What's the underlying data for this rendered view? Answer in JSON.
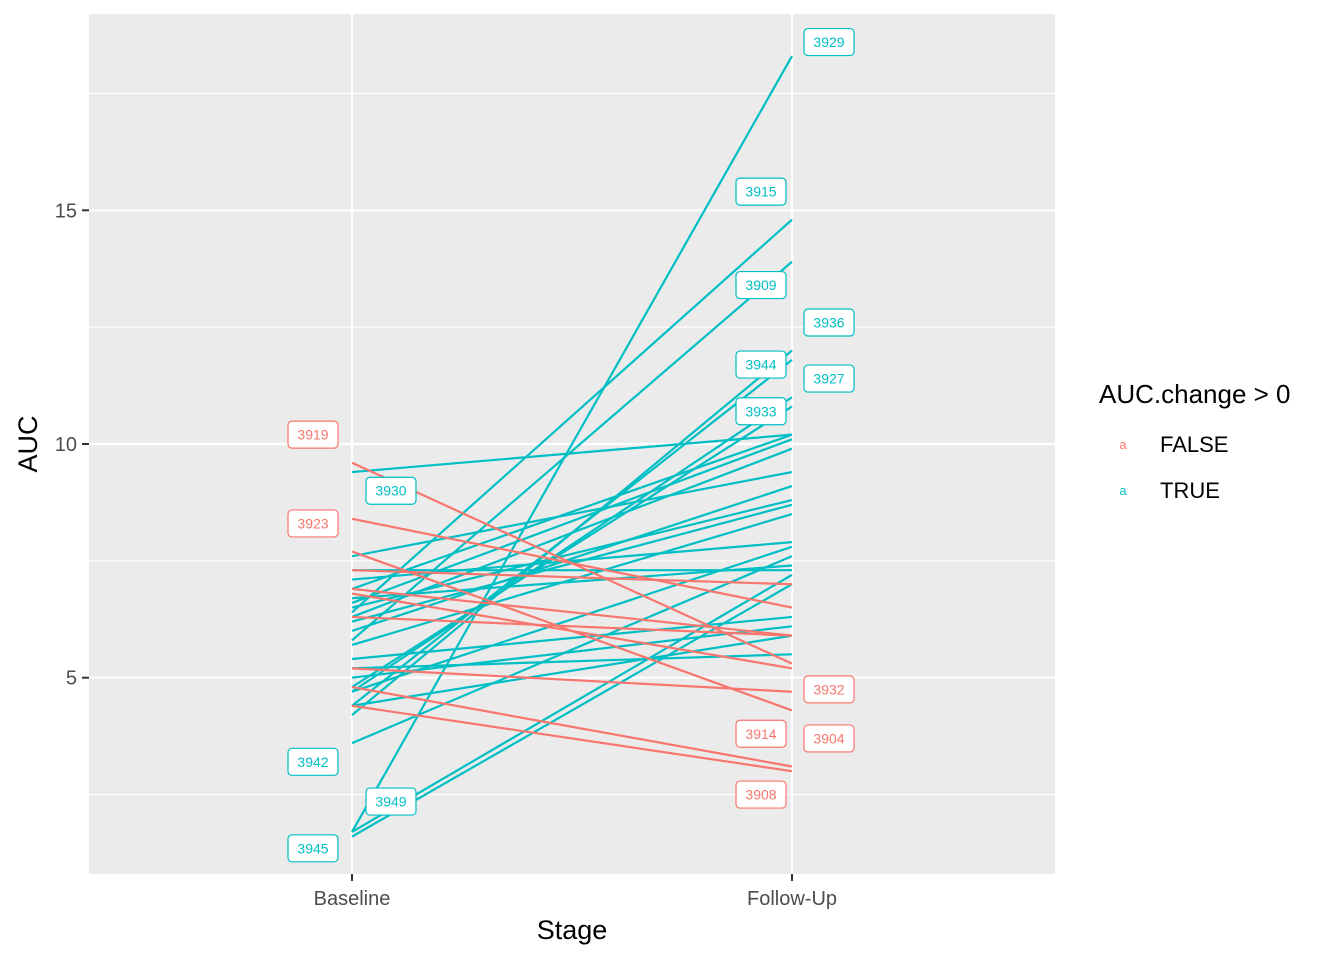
{
  "chart_data": {
    "type": "line",
    "xlabel": "Stage",
    "ylabel": "AUC",
    "categories": [
      "Baseline",
      "Follow-Up"
    ],
    "ylim": [
      0.8,
      19.2
    ],
    "yticks": [
      5,
      10,
      15
    ],
    "grid": true,
    "legend": {
      "title": "AUC.change > 0",
      "placement": "right",
      "key_glyph": "a",
      "entries": [
        {
          "label": "FALSE",
          "color": "#F8766D"
        },
        {
          "label": "TRUE",
          "color": "#00BFC4"
        }
      ]
    },
    "colors": {
      "FALSE": "#F8766D",
      "TRUE": "#00BFC4",
      "panel": "#EBEBEB",
      "grid": "#FFFFFF"
    },
    "series": [
      {
        "id": "3929",
        "group": "TRUE",
        "values": [
          1.7,
          18.3
        ]
      },
      {
        "id": "3945",
        "group": "TRUE",
        "values": [
          1.6,
          7.0
        ]
      },
      {
        "id": "3949",
        "group": "TRUE",
        "values": [
          1.7,
          7.2
        ]
      },
      {
        "id": "3942",
        "group": "TRUE",
        "values": [
          3.6,
          7.6
        ]
      },
      {
        "id": "3915",
        "group": "TRUE",
        "values": [
          6.4,
          14.8
        ]
      },
      {
        "id": "3909",
        "group": "TRUE",
        "values": [
          5.8,
          13.9
        ]
      },
      {
        "id": "3944",
        "group": "TRUE",
        "values": [
          4.2,
          12.0
        ]
      },
      {
        "id": "3936",
        "group": "TRUE",
        "values": [
          4.4,
          11.8
        ]
      },
      {
        "id": "3933",
        "group": "TRUE",
        "values": [
          4.7,
          11.0
        ]
      },
      {
        "id": "3927",
        "group": "TRUE",
        "values": [
          4.8,
          10.8
        ]
      },
      {
        "id": "3930",
        "group": "TRUE",
        "values": [
          9.4,
          10.2
        ]
      },
      {
        "id": "t12",
        "group": "TRUE",
        "values": [
          6.9,
          10.2
        ]
      },
      {
        "id": "t13",
        "group": "TRUE",
        "values": [
          6.6,
          10.1
        ]
      },
      {
        "id": "t14",
        "group": "TRUE",
        "values": [
          6.3,
          9.9
        ]
      },
      {
        "id": "t15",
        "group": "TRUE",
        "values": [
          7.6,
          9.4
        ]
      },
      {
        "id": "t16",
        "group": "TRUE",
        "values": [
          6.0,
          9.1
        ]
      },
      {
        "id": "t17",
        "group": "TRUE",
        "values": [
          6.5,
          8.8
        ]
      },
      {
        "id": "t18",
        "group": "TRUE",
        "values": [
          6.2,
          8.7
        ]
      },
      {
        "id": "t19",
        "group": "TRUE",
        "values": [
          5.7,
          8.5
        ]
      },
      {
        "id": "t20",
        "group": "TRUE",
        "values": [
          7.1,
          7.9
        ]
      },
      {
        "id": "t21",
        "group": "TRUE",
        "values": [
          4.7,
          7.8
        ]
      },
      {
        "id": "t22",
        "group": "TRUE",
        "values": [
          6.7,
          7.4
        ]
      },
      {
        "id": "t23",
        "group": "TRUE",
        "values": [
          7.3,
          7.3
        ]
      },
      {
        "id": "t24",
        "group": "TRUE",
        "values": [
          5.4,
          6.3
        ]
      },
      {
        "id": "t25",
        "group": "TRUE",
        "values": [
          5.0,
          6.1
        ]
      },
      {
        "id": "t26",
        "group": "TRUE",
        "values": [
          4.4,
          5.9
        ]
      },
      {
        "id": "t27",
        "group": "TRUE",
        "values": [
          5.2,
          5.5
        ]
      },
      {
        "id": "3919",
        "group": "FALSE",
        "values": [
          9.6,
          5.3
        ]
      },
      {
        "id": "3923",
        "group": "FALSE",
        "values": [
          8.4,
          6.5
        ]
      },
      {
        "id": "3932",
        "group": "FALSE",
        "values": [
          5.2,
          4.7
        ]
      },
      {
        "id": "3914",
        "group": "FALSE",
        "values": [
          7.7,
          4.3
        ]
      },
      {
        "id": "3904",
        "group": "FALSE",
        "values": [
          4.8,
          3.1
        ]
      },
      {
        "id": "3908",
        "group": "FALSE",
        "values": [
          4.4,
          3.0
        ]
      },
      {
        "id": "f7",
        "group": "FALSE",
        "values": [
          7.3,
          7.0
        ]
      },
      {
        "id": "f8",
        "group": "FALSE",
        "values": [
          6.9,
          5.9
        ]
      },
      {
        "id": "f9",
        "group": "FALSE",
        "values": [
          6.8,
          5.2
        ]
      },
      {
        "id": "f10",
        "group": "FALSE",
        "values": [
          6.3,
          5.9
        ]
      }
    ],
    "labels": [
      {
        "text": "3919",
        "group": "FALSE",
        "stage": "Baseline",
        "y": 10.2
      },
      {
        "text": "3923",
        "group": "FALSE",
        "stage": "Baseline",
        "y": 8.3
      },
      {
        "text": "3930",
        "group": "TRUE",
        "stage": "Baseline",
        "y": 9.0
      },
      {
        "text": "3942",
        "group": "TRUE",
        "stage": "Baseline",
        "y": 3.2
      },
      {
        "text": "3949",
        "group": "TRUE",
        "stage": "Baseline",
        "y": 2.35
      },
      {
        "text": "3945",
        "group": "TRUE",
        "stage": "Baseline",
        "y": 1.35
      },
      {
        "text": "3929",
        "group": "TRUE",
        "stage": "Follow-Up",
        "y": 18.6
      },
      {
        "text": "3915",
        "group": "TRUE",
        "stage": "Follow-Up",
        "y": 15.4
      },
      {
        "text": "3909",
        "group": "TRUE",
        "stage": "Follow-Up",
        "y": 13.4
      },
      {
        "text": "3936",
        "group": "TRUE",
        "stage": "Follow-Up",
        "y": 12.6
      },
      {
        "text": "3944",
        "group": "TRUE",
        "stage": "Follow-Up",
        "y": 11.7
      },
      {
        "text": "3927",
        "group": "TRUE",
        "stage": "Follow-Up",
        "y": 11.4
      },
      {
        "text": "3933",
        "group": "TRUE",
        "stage": "Follow-Up",
        "y": 10.7
      },
      {
        "text": "3932",
        "group": "FALSE",
        "stage": "Follow-Up",
        "y": 4.75
      },
      {
        "text": "3914",
        "group": "FALSE",
        "stage": "Follow-Up",
        "y": 3.8
      },
      {
        "text": "3904",
        "group": "FALSE",
        "stage": "Follow-Up",
        "y": 3.7
      },
      {
        "text": "3908",
        "group": "FALSE",
        "stage": "Follow-Up",
        "y": 2.5
      }
    ]
  }
}
